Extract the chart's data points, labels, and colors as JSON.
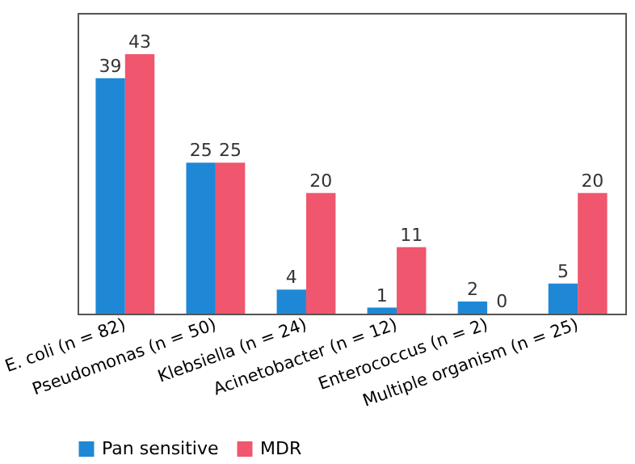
{
  "chart_data": {
    "type": "bar",
    "categories": [
      "E. coli (n = 82)",
      "Pseudomonas (n = 50)",
      "Klebsiella (n = 24)",
      "Acinetobacter (n = 12)",
      "Enterococcus (n = 2)",
      "Multiple organism (n = 25)"
    ],
    "series": [
      {
        "name": "Pan sensitive",
        "color": "#1f88d6",
        "values": [
          39,
          25,
          4,
          1,
          2,
          5
        ]
      },
      {
        "name": "MDR",
        "color": "#f0566e",
        "values": [
          43,
          25,
          20,
          11,
          0,
          20
        ]
      }
    ],
    "data_labels": true,
    "legend": "bottom",
    "grid": false
  }
}
